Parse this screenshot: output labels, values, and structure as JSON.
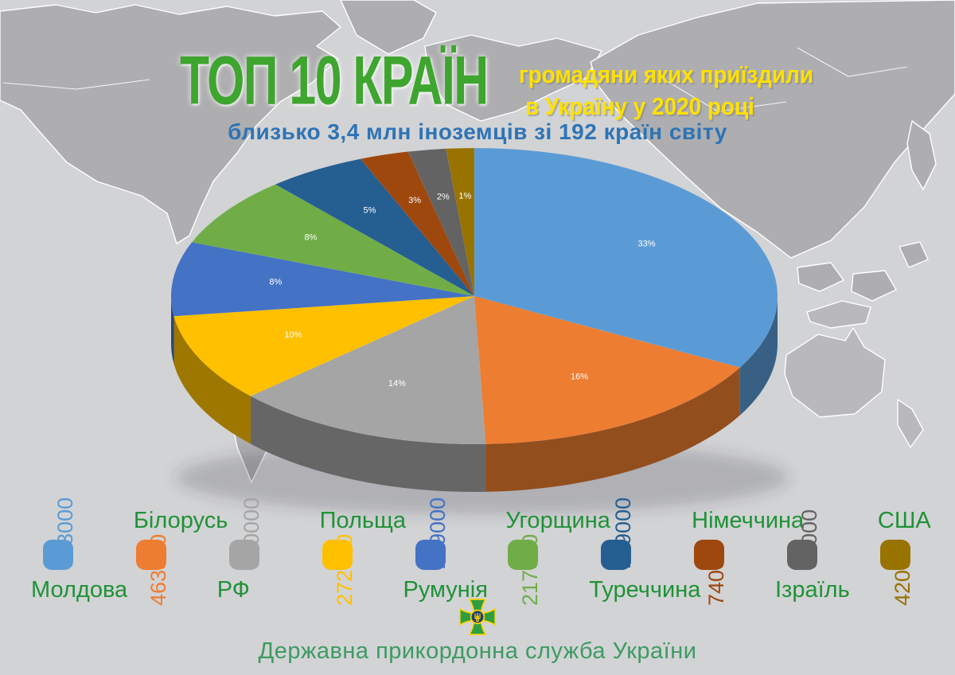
{
  "header": {
    "title": "ТОП 10 КРАЇН",
    "subtitle_line1": "громадяни яких приїздили",
    "subtitle_line2": "в Україну у 2020 році",
    "tagline": "близько 3,4 млн іноземців зі 192 країн світу"
  },
  "chart_data": {
    "type": "pie",
    "style": "3d",
    "title": "ТОП 10 КРАЇН громадяни яких приїздили в Україну у 2020 році",
    "subtitle": "близько 3,4 млн іноземців зі 192 країн світу",
    "start_angle_deg": 0,
    "direction": "clockwise",
    "legend_position": "bottom",
    "categories": [
      "Молдова",
      "Білорусь",
      "РФ",
      "Польща",
      "Румунія",
      "Угорщина",
      "Туреччина",
      "Німеччина",
      "Ізраїль",
      "США"
    ],
    "values": [
      933000,
      463500,
      390000,
      272000,
      229000,
      217000,
      149000,
      74000,
      57000,
      42000
    ],
    "percent_labels": [
      "33%",
      "16%",
      "14%",
      "10%",
      "8%",
      "8%",
      "5%",
      "3%",
      "2%",
      "1%"
    ],
    "colors": [
      "#5B9BD5",
      "#ED7D31",
      "#A5A5A5",
      "#FFC000",
      "#4472C4",
      "#70AD47",
      "#255E91",
      "#9E480E",
      "#636363",
      "#997300"
    ]
  },
  "footer": {
    "org": "Державна прикордонна служба України",
    "emblem_icon": "border-guard-emblem"
  },
  "colors": {
    "background": "#D2D3D5",
    "map": "#AEAEB0",
    "title_green": "#3EA52F",
    "subtitle_yellow": "#FFE100",
    "tagline_blue": "#2E74B5",
    "legend_name_green": "#1F9237",
    "footer_green": "#3D9B62"
  }
}
